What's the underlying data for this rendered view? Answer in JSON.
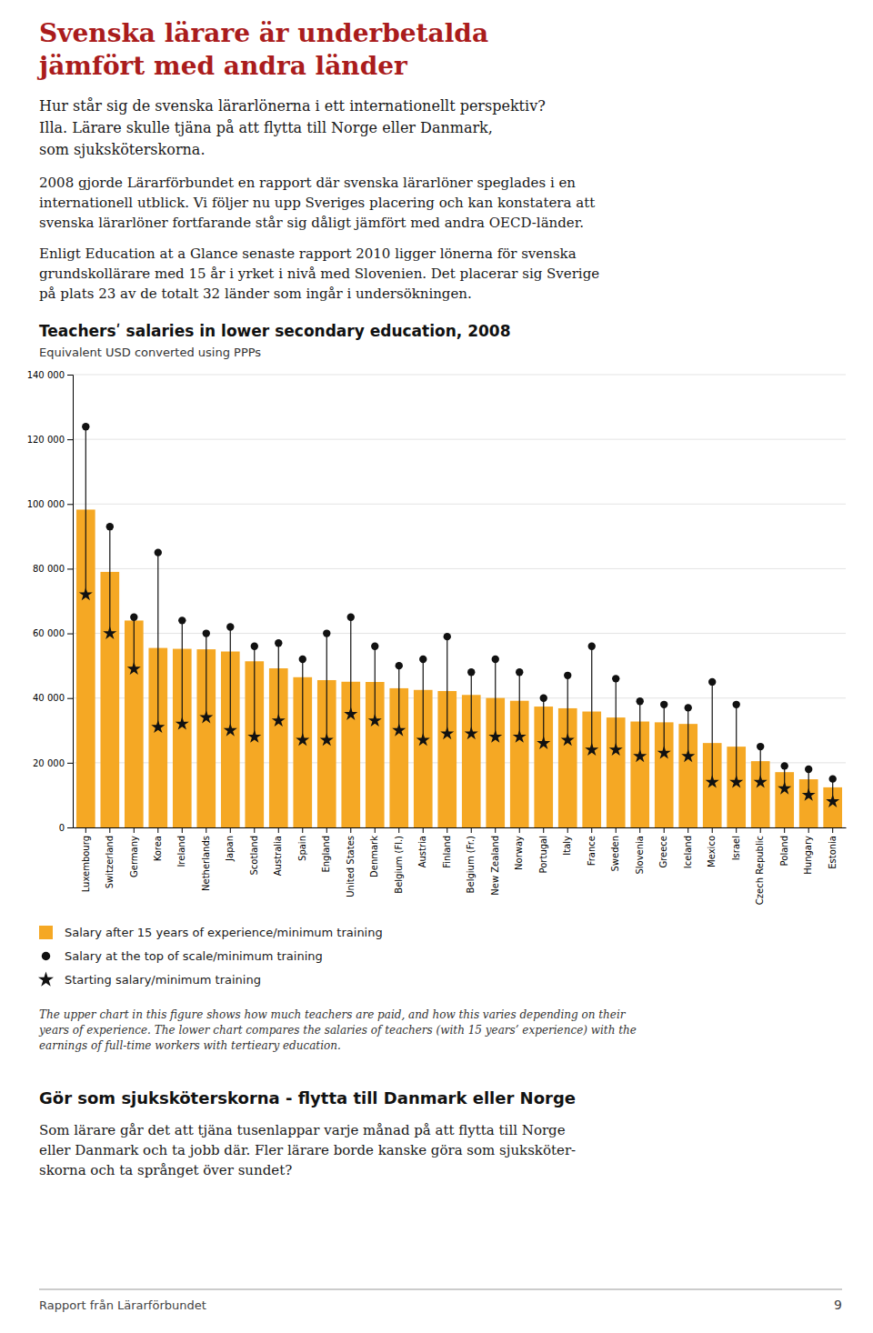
{
  "page": {
    "title": "Svenska lärare är underbetalda\njämfört med andra länder",
    "subtitle": "Hur står sig de svenska lärarlönerna i ett internationellt perspektiv?\nIlla. Lärare skulle tjäna på att flytta till Norge eller Danmark,\nsom sjuksköterskorna.",
    "paragraphs": [
      "2008 gjorde Lärarförbundet en rapport där svenska lärarlöner speglades i en\ninternationell utblick. Vi följer nu upp Sveriges placering och kan konstatera att\nsvenska lärarlöner fortfarande står sig dåligt jämfört med andra OECD-länder.",
      "Enligt Education at a Glance senaste rapport 2010 ligger lönerna för svenska\ngrundskollärare med 15 år i yrket i nivå med Slovenien. Det placerar sig Sverige\npå plats 23 av de totalt 32 länder som ingår i undersökningen."
    ],
    "section_title": "Gör som sjuksköterskorna - flytta till Danmark eller Norge",
    "section_body": "Som lärare går det att tjäna tusenlappar varje månad på att flytta till Norge\neller Danmark och ta jobb där. Fler lärare borde kanske göra som sjuksköter-\nskorna och ta språnget över sundet?",
    "footer": "Rapport från Lärarförbundet",
    "page_number": "9"
  },
  "chart_data": {
    "type": "bar",
    "title": "Teachersʹ salaries in lower secondary education, 2008",
    "subtitle": "Equivalent USD converted using PPPs",
    "categories": [
      "Luxembourg",
      "Switzerland",
      "Germany",
      "Korea",
      "Ireland",
      "Netherlands",
      "Japan",
      "Scotland",
      "Australia",
      "Spain",
      "England",
      "United States",
      "Denmark",
      "Belgium (Fl.)",
      "Austria",
      "Finland",
      "Belgium (Fr.)",
      "New Zealand",
      "Norway",
      "Portugal",
      "Italy",
      "France",
      "Sweden",
      "Slovenia",
      "Greece",
      "Iceland",
      "Mexico",
      "Israel",
      "Czech Republic",
      "Poland",
      "Hungary",
      "Estonia"
    ],
    "series": [
      {
        "name": "Salary after 15 years of experience/minimum training",
        "type": "bar",
        "color": "#F5A824",
        "values": [
          98267,
          79008,
          63980,
          55492,
          55227,
          55077,
          54396,
          51370,
          49189,
          46447,
          45545,
          45047,
          44977,
          43034,
          42514,
          42176,
          40969,
          40025,
          39161,
          37374,
          36842,
          35838,
          33987,
          32748,
          32502,
          32003,
          26103,
          24979,
          20490,
          17098,
          14890,
          12400
        ]
      },
      {
        "name": "Salary at the top of scale/minimum training",
        "type": "scatter",
        "marker": "circle",
        "color": "#111111",
        "values": [
          123895,
          93000,
          65000,
          85000,
          64000,
          60000,
          62000,
          56000,
          57000,
          52000,
          60000,
          65000,
          56000,
          50000,
          52000,
          59000,
          48000,
          52000,
          48000,
          40000,
          47000,
          56000,
          46000,
          39000,
          38000,
          37000,
          45000,
          38000,
          25000,
          19000,
          18000,
          15000
        ]
      },
      {
        "name": "Starting salary/minimum training",
        "type": "scatter",
        "marker": "star",
        "color": "#111111",
        "values": [
          72000,
          60000,
          49000,
          31000,
          32000,
          34000,
          30000,
          28000,
          33000,
          27000,
          27000,
          35000,
          33000,
          30000,
          27000,
          29000,
          29000,
          28000,
          28000,
          26000,
          27000,
          24000,
          24000,
          22000,
          23000,
          22000,
          14000,
          14000,
          14000,
          12000,
          10000,
          8000
        ]
      }
    ],
    "ylim": [
      0,
      140000
    ],
    "yticks": [
      0,
      {
        "value": 20000,
        "label": "20 000"
      },
      {
        "value": 40000,
        "label": "40 000"
      },
      {
        "value": 60000,
        "label": "60 000"
      },
      {
        "value": 80000,
        "label": "80 000"
      },
      {
        "value": 100000,
        "label": "100 000"
      },
      {
        "value": 120000,
        "label": "120 000"
      },
      {
        "value": 140000,
        "label": "140 000"
      }
    ],
    "grid": true,
    "annotations": [
      "The upper chart in this figure shows how much teachers are paid, and how this varies depending on their\nyears of experience. The lower chart compares the salaries of teachers (with 15 years’ experience) with the\nearnings of full-time workers with tertieary education."
    ]
  }
}
